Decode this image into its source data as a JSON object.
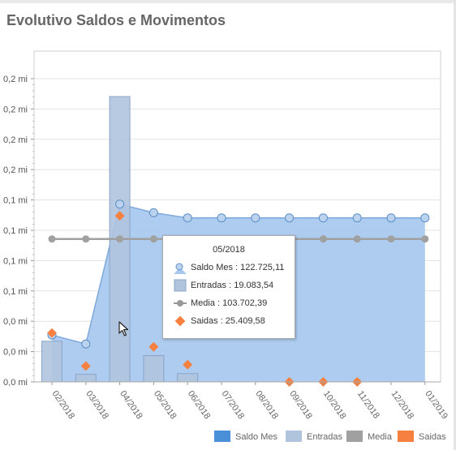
{
  "title": "Evolutivo Saldos e Movimentos",
  "chart_data": {
    "type": "bar",
    "title": "Evolutivo Saldos e Movimentos",
    "categories": [
      "02/2018",
      "03/2018",
      "04/2018",
      "05/2018",
      "06/2018",
      "07/2018",
      "08/2018",
      "09/2018",
      "10/2018",
      "11/2018",
      "12/2018",
      "01/2019"
    ],
    "y_tick_labels": [
      "0,0 mi",
      "0,0 mi",
      "0,0 mi",
      "0,1 mi",
      "0,1 mi",
      "0,1 mi",
      "0,1 mi",
      "0,2 mi",
      "0,2 mi",
      "0,2 mi",
      "0,2 mi"
    ],
    "ylim": [
      0,
      220000
    ],
    "grid": true,
    "legend_position": "bottom-right",
    "series": [
      {
        "name": "Saldo Mes",
        "type": "area",
        "color": "#4a90d9",
        "values": [
          34000,
          27500,
          129000,
          122725,
          119000,
          119000,
          119000,
          119000,
          119000,
          119000,
          119000,
          119000
        ]
      },
      {
        "name": "Entradas",
        "type": "bar",
        "color": "#b0c4de",
        "values": [
          29500,
          5500,
          207000,
          19083,
          6000,
          null,
          null,
          null,
          null,
          null,
          null,
          null
        ]
      },
      {
        "name": "Media",
        "type": "line",
        "color": "#a0a0a0",
        "values": [
          103700,
          103700,
          103700,
          103702,
          103700,
          103700,
          103700,
          103700,
          103700,
          103700,
          103700,
          103700
        ]
      },
      {
        "name": "Saidas",
        "type": "scatter",
        "color": "#f58040",
        "values": [
          35500,
          11500,
          120500,
          25410,
          12500,
          null,
          null,
          0,
          0,
          0,
          null,
          null
        ]
      }
    ]
  },
  "tooltip": {
    "header": "05/2018",
    "rows": [
      {
        "icon": "saldo-mes-icon",
        "text": "Saldo Mes : 122.725,11"
      },
      {
        "icon": "entradas-icon",
        "text": "Entradas : 19.083,54"
      },
      {
        "icon": "media-icon",
        "text": "Media : 103.702,39"
      },
      {
        "icon": "saidas-icon",
        "text": "Saidas : 25.409,58"
      }
    ]
  },
  "legend": {
    "items": [
      {
        "label": "Saldo Mes",
        "color": "#4a90d9"
      },
      {
        "label": "Entradas",
        "color": "#b0c4de"
      },
      {
        "label": "Media",
        "color": "#a0a0a0"
      },
      {
        "label": "Saidas",
        "color": "#f58040"
      }
    ]
  }
}
